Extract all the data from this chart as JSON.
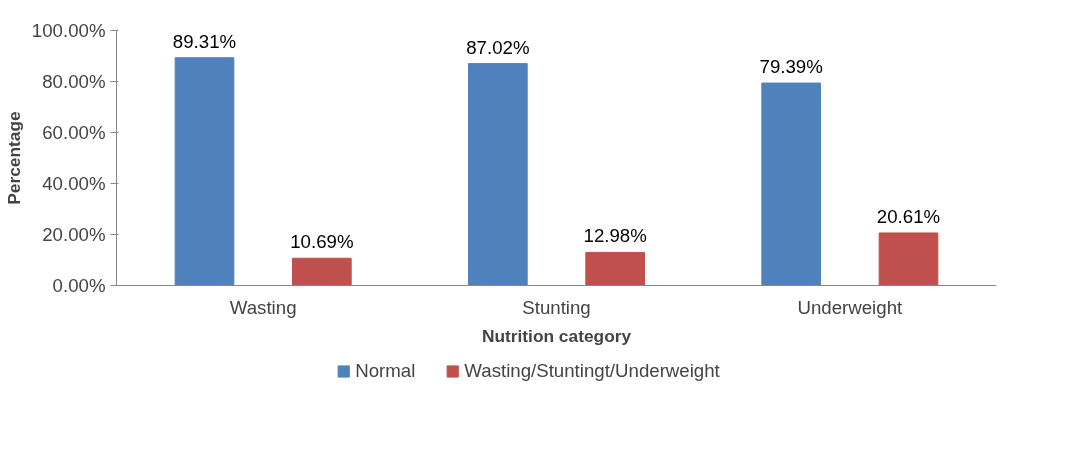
{
  "chart_data": {
    "type": "bar",
    "xlabel": "Nutrition category",
    "ylabel": "Percentage",
    "categories": [
      "Wasting",
      "Stunting",
      "Underweight"
    ],
    "series": [
      {
        "name": "Normal",
        "color": "#4f81bd",
        "values": [
          89.31,
          87.02,
          79.39
        ],
        "value_labels": [
          "89.31%",
          "87.02%",
          "79.39%"
        ]
      },
      {
        "name": "Wasting/Stuntingt/Underweight",
        "color": "#c0504d",
        "values": [
          10.69,
          12.98,
          20.61
        ],
        "value_labels": [
          "10.69%",
          "12.98%",
          "20.61%"
        ]
      }
    ],
    "ylim": [
      0,
      100
    ],
    "yticks": [
      {
        "value": 0,
        "label": "0.00%"
      },
      {
        "value": 20,
        "label": "20.00%"
      },
      {
        "value": 40,
        "label": "40.00%"
      },
      {
        "value": 60,
        "label": "60.00%"
      },
      {
        "value": 80,
        "label": "80.00%"
      },
      {
        "value": 100,
        "label": "100.00%"
      }
    ],
    "legend": "bottom"
  }
}
